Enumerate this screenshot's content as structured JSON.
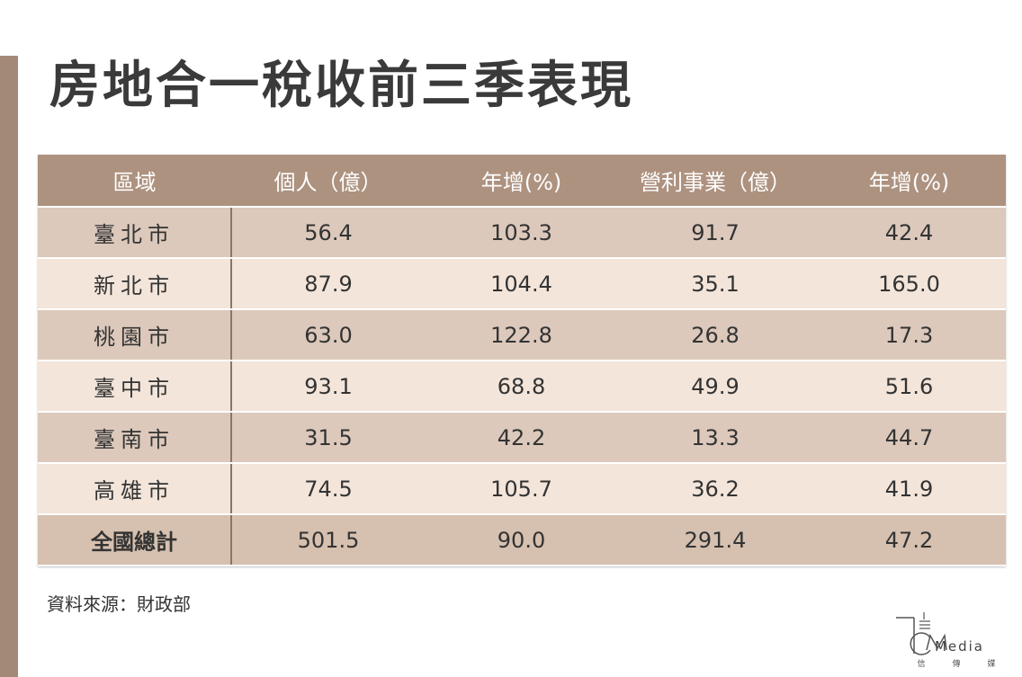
{
  "title": "房地合一稅收前三季表現",
  "table": {
    "headers": [
      "區域",
      "個人（億）",
      "年增(%)",
      "營利事業（億）",
      "年增(%)"
    ],
    "rows": [
      [
        "臺北市",
        "56.4",
        "103.3",
        "91.7",
        "42.4"
      ],
      [
        "新北市",
        "87.9",
        "104.4",
        "35.1",
        "165.0"
      ],
      [
        "桃園市",
        "63.0",
        "122.8",
        "26.8",
        "17.3"
      ],
      [
        "臺中市",
        "93.1",
        "68.8",
        "49.9",
        "51.6"
      ],
      [
        "臺南市",
        "31.5",
        "42.2",
        "13.3",
        "44.7"
      ],
      [
        "高雄市",
        "74.5",
        "105.7",
        "36.2",
        "41.9"
      ]
    ],
    "total": [
      "全國總計",
      "501.5",
      "90.0",
      "291.4",
      "47.2"
    ]
  },
  "source": "資料來源：財政部",
  "logo": {
    "wordmark": "Media",
    "subtitle": [
      "信",
      "傳",
      "媒"
    ]
  },
  "colors": {
    "header_bg": "#ad927f",
    "row_dark": "#dcc9bb",
    "row_light": "#f3e5da",
    "accent_bar": "#a38a78"
  }
}
